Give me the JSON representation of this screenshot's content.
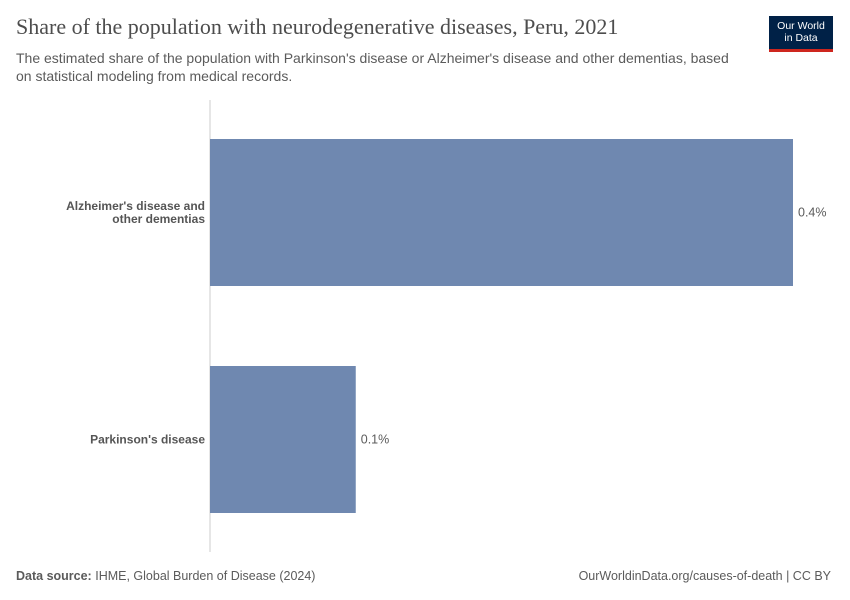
{
  "header": {
    "title": "Share of the population with neurodegenerative diseases, Peru, 2021",
    "subtitle": "The estimated share of the population with Parkinson's disease or Alzheimer's disease and other dementias, based on statistical modeling from medical records."
  },
  "logo": {
    "line1": "Our World",
    "line2": "in Data"
  },
  "chart_data": {
    "type": "bar",
    "orientation": "horizontal",
    "categories": [
      "Alzheimer's disease and other dementias",
      "Parkinson's disease"
    ],
    "values": [
      0.4,
      0.1
    ],
    "value_labels": [
      "0.4%",
      "0.1%"
    ],
    "unit": "%",
    "xlim": [
      0,
      0.4
    ],
    "grid": false,
    "bar_color": "#6f88b0"
  },
  "footer": {
    "source_label": "Data source:",
    "source_text": "IHME, Global Burden of Disease (2024)",
    "credit": "OurWorldinData.org/causes-of-death | CC BY"
  }
}
